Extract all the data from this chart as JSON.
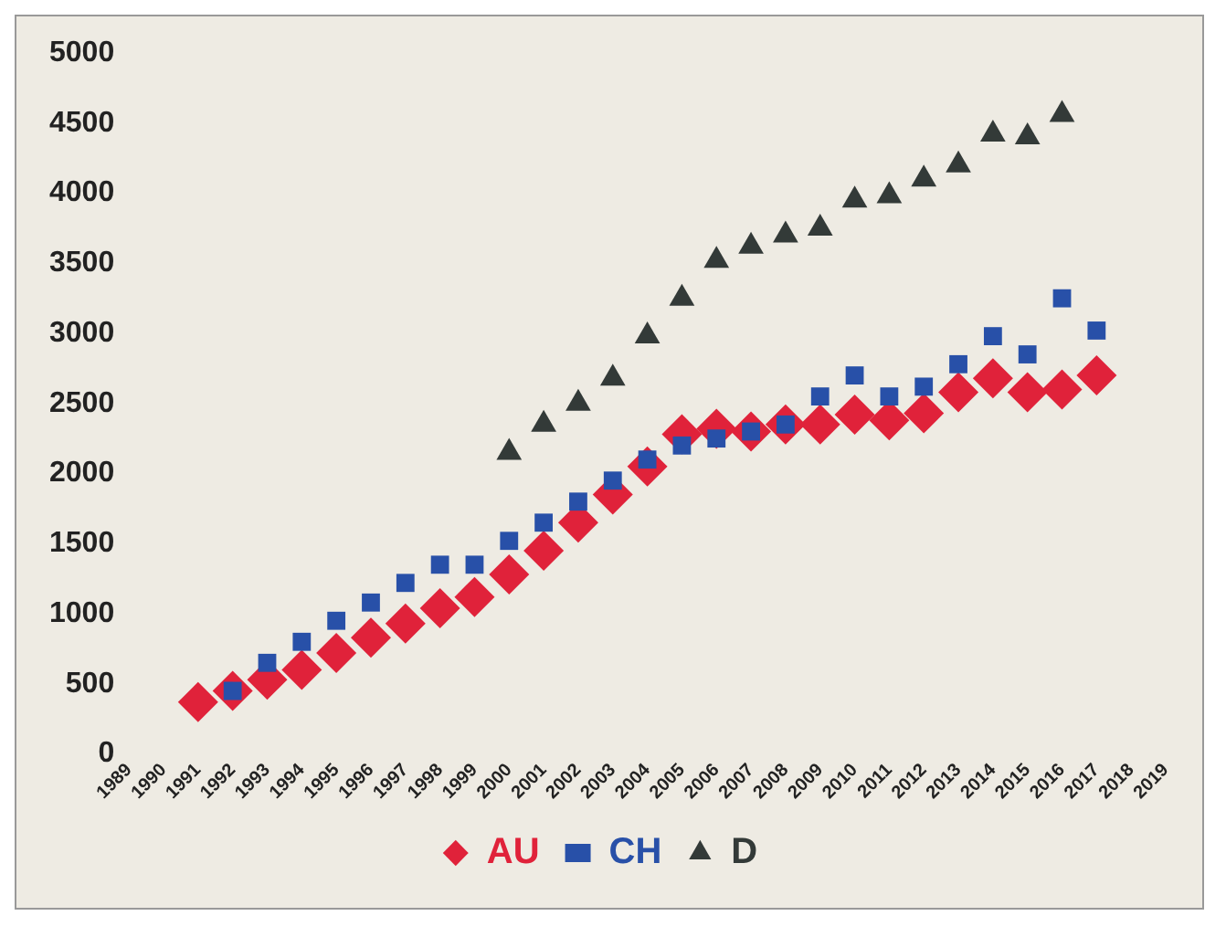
{
  "chart_data": {
    "type": "scatter",
    "categories": [
      "1989",
      "1990",
      "1991",
      "1992",
      "1993",
      "1994",
      "1995",
      "1996",
      "1997",
      "1998",
      "1999",
      "2000",
      "2001",
      "2002",
      "2003",
      "2004",
      "2005",
      "2006",
      "2007",
      "2008",
      "2009",
      "2010",
      "2011",
      "2012",
      "2013",
      "2014",
      "2015",
      "2016",
      "2017",
      "2018",
      "2019"
    ],
    "series": [
      {
        "name": "AU",
        "color": "#e0223a",
        "marker": "diamond",
        "values": [
          null,
          null,
          370,
          450,
          530,
          600,
          720,
          830,
          930,
          1040,
          1120,
          1280,
          1450,
          1650,
          1850,
          2050,
          2280,
          2320,
          2300,
          2350,
          2350,
          2420,
          2380,
          2430,
          2580,
          2680,
          2580,
          2600,
          2700,
          null,
          null
        ]
      },
      {
        "name": "CH",
        "color": "#2850a8",
        "marker": "square",
        "values": [
          null,
          null,
          null,
          450,
          650,
          800,
          950,
          1080,
          1220,
          1350,
          1350,
          1520,
          1650,
          1800,
          1950,
          2100,
          2200,
          2250,
          2300,
          2350,
          2550,
          2700,
          2550,
          2620,
          2780,
          2980,
          2850,
          3250,
          3020,
          null,
          null
        ]
      },
      {
        "name": "D",
        "color": "#333a38",
        "marker": "triangle",
        "values": [
          null,
          null,
          null,
          null,
          null,
          null,
          null,
          null,
          null,
          null,
          null,
          2150,
          2350,
          2500,
          2680,
          2980,
          3250,
          3520,
          3620,
          3700,
          3750,
          3950,
          3980,
          4100,
          4200,
          4420,
          4400,
          4560,
          null,
          null,
          null
        ]
      }
    ],
    "ylim": [
      0,
      5000
    ],
    "yticks": [
      0,
      500,
      1000,
      1500,
      2000,
      2500,
      3000,
      3500,
      4000,
      4500,
      5000
    ],
    "grid": false,
    "legend": "bottom"
  }
}
